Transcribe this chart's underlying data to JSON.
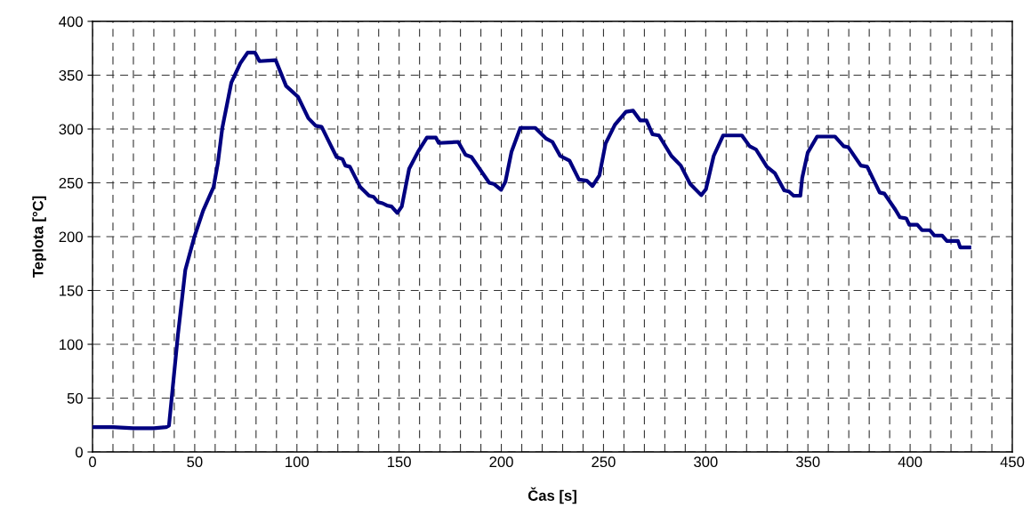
{
  "chart_data": {
    "type": "line",
    "xlabel": "Čas [s]",
    "ylabel": "Teplota [°C]",
    "series": [
      {
        "color": "#000080",
        "x": [
          0,
          10,
          20,
          30,
          36,
          37.4,
          41.8,
          45.4,
          49.7,
          54.1,
          59.2,
          61.3,
          63.5,
          67.9,
          72.3,
          75.9,
          79.5,
          81.7,
          89.6,
          94.7,
          100.5,
          105.6,
          109.2,
          112.1,
          116.5,
          119.4,
          122.3,
          123.7,
          125.9,
          131,
          135.3,
          137.5,
          139.7,
          141.9,
          144,
          146.3,
          149.1,
          151.3,
          154.9,
          159.3,
          163.6,
          168,
          169.4,
          178.9,
          182.5,
          185.4,
          188.3,
          194.1,
          196.3,
          199.9,
          202,
          205,
          209.3,
          216.6,
          222,
          225,
          228.8,
          233.4,
          238,
          241.8,
          244.6,
          248,
          251,
          255.6,
          261,
          264.5,
          267.9,
          271,
          274,
          277.1,
          283.2,
          287.8,
          292.4,
          297.8,
          300.1,
          303.9,
          308.5,
          317.7,
          321.5,
          324.6,
          329.9,
          333.8,
          338.4,
          340.7,
          343,
          346.3,
          347.2,
          349.9,
          354.5,
          363.2,
          367.5,
          369.8,
          375.9,
          379,
          385.1,
          387.4,
          392.8,
          395,
          398.1,
          399.6,
          403.5,
          405.8,
          409.6,
          411.9,
          415.7,
          418,
          423.4,
          424.5,
          429
        ],
        "values": [
          23,
          23,
          22,
          22,
          23,
          24.5,
          109,
          169,
          199,
          224,
          246,
          268,
          301,
          343,
          361,
          371,
          371,
          363,
          364,
          340,
          330,
          310,
          303,
          302,
          285,
          274,
          272,
          266,
          265,
          246,
          238,
          237,
          232,
          231,
          229,
          228,
          222,
          228,
          263,
          279,
          292,
          292,
          287,
          288,
          276,
          274,
          266,
          250,
          249,
          243.5,
          251,
          279,
          301,
          301,
          291,
          288,
          275,
          270.5,
          253,
          252,
          247,
          257,
          286.5,
          304,
          316,
          317,
          308,
          308,
          295,
          294,
          275,
          266,
          249,
          238.5,
          244,
          275,
          294,
          294,
          284,
          281,
          265,
          259,
          243,
          242,
          238,
          238,
          254.5,
          278,
          293,
          293,
          284,
          283,
          266,
          265,
          241,
          240,
          225,
          218,
          217,
          211,
          211,
          206,
          206,
          201,
          201,
          196,
          196,
          190,
          190
        ]
      }
    ],
    "xlim": [
      0,
      450
    ],
    "xticks": [
      0,
      {
        "value": 10,
        "label": null
      },
      {
        "value": 20,
        "label": null
      },
      {
        "value": 30,
        "label": null
      },
      {
        "value": 40,
        "label": null
      },
      50,
      {
        "value": 60,
        "label": null
      },
      {
        "value": 70,
        "label": null
      },
      {
        "value": 80,
        "label": null
      },
      {
        "value": 90,
        "label": null
      },
      100,
      {
        "value": 110,
        "label": null
      },
      {
        "value": 120,
        "label": null
      },
      {
        "value": 130,
        "label": null
      },
      {
        "value": 140,
        "label": null
      },
      150,
      {
        "value": 160,
        "label": null
      },
      {
        "value": 170,
        "label": null
      },
      {
        "value": 180,
        "label": null
      },
      {
        "value": 190,
        "label": null
      },
      200,
      {
        "value": 210,
        "label": null
      },
      {
        "value": 220,
        "label": null
      },
      {
        "value": 230,
        "label": null
      },
      {
        "value": 240,
        "label": null
      },
      250,
      {
        "value": 260,
        "label": null
      },
      {
        "value": 270,
        "label": null
      },
      {
        "value": 280,
        "label": null
      },
      {
        "value": 290,
        "label": null
      },
      300,
      {
        "value": 310,
        "label": null
      },
      {
        "value": 320,
        "label": null
      },
      {
        "value": 330,
        "label": null
      },
      {
        "value": 340,
        "label": null
      },
      350,
      {
        "value": 360,
        "label": null
      },
      {
        "value": 370,
        "label": null
      },
      {
        "value": 380,
        "label": null
      },
      {
        "value": 390,
        "label": null
      },
      400,
      {
        "value": 410,
        "label": null
      },
      {
        "value": 420,
        "label": null
      },
      {
        "value": 430,
        "label": null
      },
      {
        "value": 440,
        "label": null
      },
      450
    ],
    "ylim": [
      0,
      400
    ],
    "yticks": [
      0,
      50,
      100,
      150,
      200,
      250,
      300,
      350,
      400
    ],
    "grid": true,
    "legend": false,
    "marker": "none",
    "line_style": "solid"
  }
}
